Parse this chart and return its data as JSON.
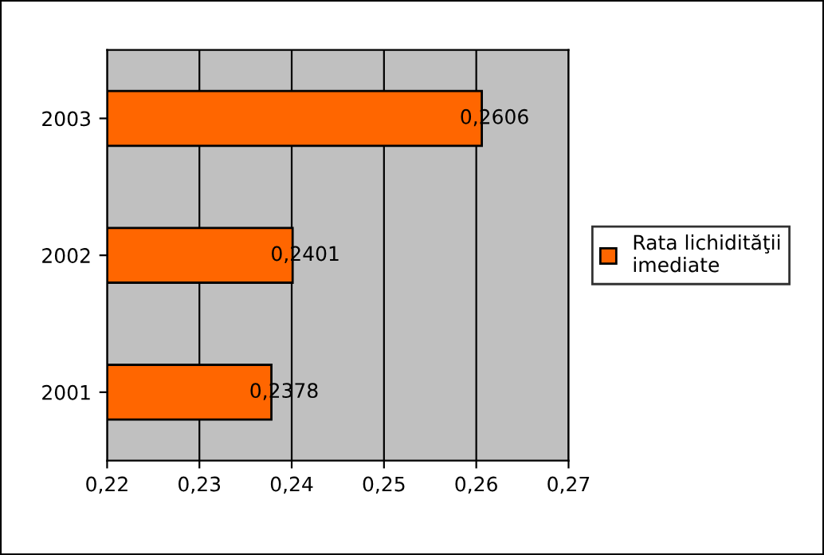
{
  "chart_data": {
    "type": "bar",
    "orientation": "horizontal",
    "categories": [
      "2003",
      "2002",
      "2001"
    ],
    "series": [
      {
        "name": "Rata lichidităţii imediate",
        "color": "#ff6600",
        "values": [
          0.2606,
          0.2401,
          0.2378
        ],
        "value_labels": [
          "0,2606",
          "0,2401",
          "0,2378"
        ]
      }
    ],
    "xlim": [
      0.22,
      0.27
    ],
    "xticks": [
      {
        "value": 0.22,
        "label": "0,22"
      },
      {
        "value": 0.23,
        "label": "0,23"
      },
      {
        "value": 0.24,
        "label": "0,24"
      },
      {
        "value": 0.25,
        "label": "0,25"
      },
      {
        "value": 0.26,
        "label": "0,26"
      },
      {
        "value": 0.27,
        "label": "0,27"
      }
    ],
    "grid": "x",
    "legend": "right"
  }
}
